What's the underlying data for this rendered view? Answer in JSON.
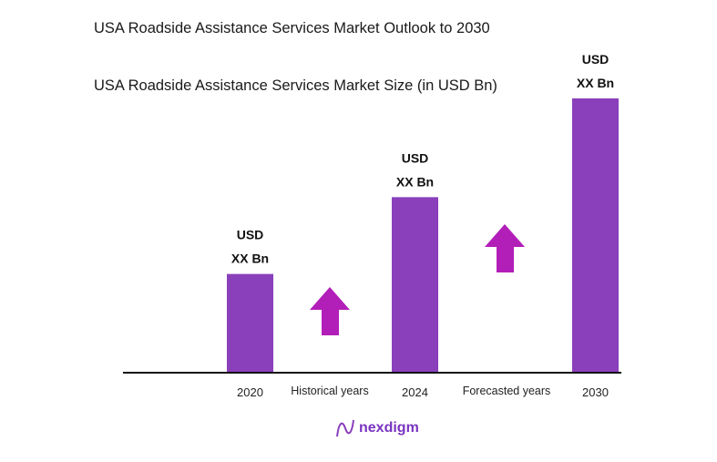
{
  "header": {
    "title": "USA Roadside Assistance Services Market Outlook to 2030"
  },
  "chart_data": {
    "type": "bar",
    "title": "USA Roadside Assistance Services Market Size (in USD Bn)",
    "categories": [
      "2020",
      "2024",
      "2030"
    ],
    "relative_values": [
      0.36,
      0.64,
      1.0
    ],
    "data_labels": [
      [
        "USD",
        "XX Bn"
      ],
      [
        "USD",
        "XX Bn"
      ],
      [
        "USD",
        "XX Bn"
      ]
    ],
    "period_labels": [
      "Historical years",
      "Forecasted years"
    ],
    "bar_color": "#8a3fbb",
    "arrow_color": "#b21fb8",
    "grid": false
  },
  "logo": {
    "text": "nexdigm",
    "color": "#7a35c0"
  }
}
